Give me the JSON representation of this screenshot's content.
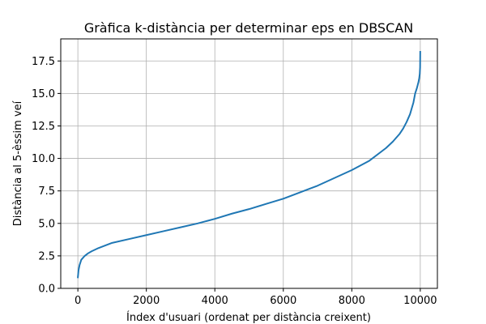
{
  "chart_data": {
    "type": "line",
    "title": "Gràfica k-distància per determinar eps en DBSCAN",
    "xlabel": "Índex d'usuari (ordenat per distància creixent)",
    "ylabel": "Distància al 5-èssim veí",
    "xlim": [
      -500,
      10500
    ],
    "ylim": [
      0,
      19.2
    ],
    "grid": true,
    "x_ticks": [
      0,
      2000,
      4000,
      6000,
      8000,
      10000
    ],
    "x_tick_labels": [
      "0",
      "2000",
      "4000",
      "6000",
      "8000",
      "10000"
    ],
    "y_ticks": [
      0.0,
      2.5,
      5.0,
      7.5,
      10.0,
      12.5,
      15.0,
      17.5
    ],
    "y_tick_labels": [
      "0.0",
      "2.5",
      "5.0",
      "7.5",
      "10.0",
      "12.5",
      "15.0",
      "17.5"
    ],
    "series": [
      {
        "color": "#1f77b4",
        "x": [
          0,
          20,
          50,
          100,
          200,
          300,
          400,
          600,
          800,
          1000,
          1500,
          2000,
          2500,
          3000,
          3500,
          4000,
          4500,
          5000,
          5500,
          6000,
          6500,
          7000,
          7500,
          8000,
          8500,
          9000,
          9200,
          9400,
          9500,
          9600,
          9700,
          9800,
          9850,
          9900,
          9930,
          9950,
          9970,
          9985,
          9995,
          9999
        ],
        "y": [
          0.85,
          1.4,
          1.8,
          2.2,
          2.5,
          2.7,
          2.85,
          3.1,
          3.3,
          3.5,
          3.8,
          4.1,
          4.4,
          4.7,
          5.0,
          5.35,
          5.75,
          6.1,
          6.5,
          6.9,
          7.4,
          7.9,
          8.5,
          9.1,
          9.8,
          10.8,
          11.3,
          11.9,
          12.3,
          12.8,
          13.4,
          14.3,
          15.0,
          15.4,
          15.7,
          15.9,
          16.2,
          16.5,
          17.0,
          18.2
        ]
      }
    ]
  }
}
